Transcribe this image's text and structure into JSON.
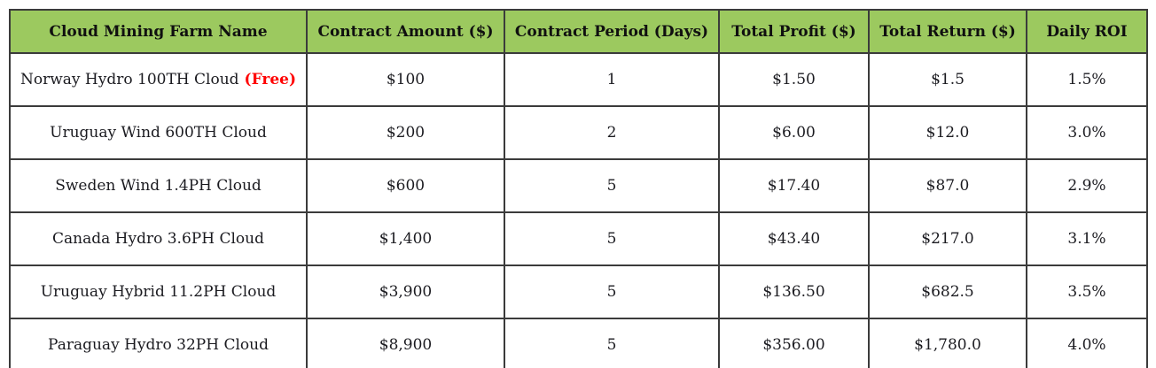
{
  "colors": {
    "header_background": "#9cc95f",
    "grid_border": "#3b3b3b",
    "body_text": "#1b1b20",
    "free_tag_text": "#ff0000"
  },
  "chart_data": {
    "type": "table",
    "columns": [
      "Cloud Mining Farm Name",
      "Contract Amount ($)",
      "Contract Period (Days)",
      "Total Profit ($)",
      "Total Return ($)",
      "Daily ROI"
    ],
    "rows": [
      {
        "name": "Norway Hydro 100TH Cloud",
        "tag": "(Free)",
        "amount": "$100",
        "period": "1",
        "profit": "$1.50",
        "return": "$1.5",
        "roi": "1.5%"
      },
      {
        "name": "Uruguay Wind 600TH Cloud",
        "amount": "$200",
        "period": "2",
        "profit": "$6.00",
        "return": "$12.0",
        "roi": "3.0%"
      },
      {
        "name": "Sweden Wind 1.4PH Cloud",
        "amount": "$600",
        "period": "5",
        "profit": "$17.40",
        "return": "$87.0",
        "roi": "2.9%"
      },
      {
        "name": "Canada Hydro 3.6PH Cloud",
        "amount": "$1,400",
        "period": "5",
        "profit": "$43.40",
        "return": "$217.0",
        "roi": "3.1%"
      },
      {
        "name": "Uruguay Hybrid 11.2PH Cloud",
        "amount": "$3,900",
        "period": "5",
        "profit": "$136.50",
        "return": "$682.5",
        "roi": "3.5%"
      },
      {
        "name": "Paraguay Hydro 32PH Cloud",
        "amount": "$8,900",
        "period": "5",
        "profit": "$356.00",
        "return": "$1,780.0",
        "roi": "4.0%"
      }
    ]
  }
}
